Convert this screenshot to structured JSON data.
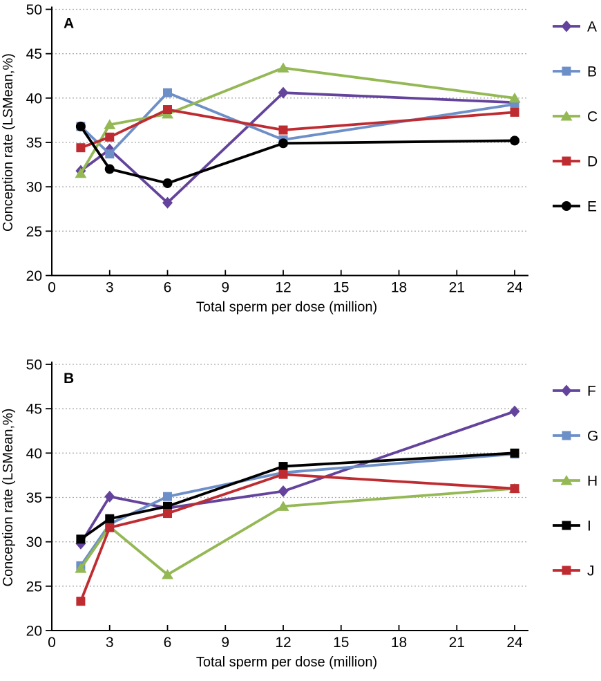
{
  "page": {
    "background": "#ffffff",
    "text_color": "#000000",
    "gridline_color": "#aaaaaa"
  },
  "chart_data": [
    {
      "type": "line",
      "panel_label": "A",
      "title": "",
      "xlabel": "Total sperm per dose (million)",
      "ylabel": "Conception rate (LSMean,%)",
      "x": [
        1.5,
        3,
        6,
        12,
        24
      ],
      "xticks": [
        0,
        3,
        6,
        9,
        12,
        15,
        18,
        21,
        24
      ],
      "yticks": [
        20,
        25,
        30,
        35,
        40,
        45,
        50
      ],
      "xlim": [
        0,
        24.7
      ],
      "ylim": [
        20,
        50
      ],
      "grid": "horizontal-dashed",
      "legend_position": "right-outside",
      "series": [
        {
          "name": "A",
          "marker": "diamond",
          "color": "#63439B",
          "values": [
            31.8,
            34.2,
            28.2,
            40.6,
            39.5
          ]
        },
        {
          "name": "B",
          "marker": "square",
          "color": "#6D8FC8",
          "values": [
            36.8,
            33.7,
            40.6,
            35.3,
            39.3
          ]
        },
        {
          "name": "C",
          "marker": "triangle",
          "color": "#94B854",
          "values": [
            31.5,
            37.0,
            38.2,
            43.4,
            40.0
          ]
        },
        {
          "name": "D",
          "marker": "square",
          "color": "#BE2C31",
          "values": [
            34.4,
            35.6,
            38.7,
            36.4,
            38.4
          ]
        },
        {
          "name": "E",
          "marker": "circle",
          "color": "#000000",
          "values": [
            36.8,
            32.0,
            30.4,
            34.9,
            35.2
          ]
        }
      ]
    },
    {
      "type": "line",
      "panel_label": "B",
      "title": "",
      "xlabel": "Total sperm per dose (million)",
      "ylabel": "Conception rate (LSMean,%)",
      "x": [
        1.5,
        3,
        6,
        12,
        24
      ],
      "xticks": [
        0,
        3,
        6,
        9,
        12,
        15,
        18,
        21,
        24
      ],
      "yticks": [
        20,
        25,
        30,
        35,
        40,
        45,
        50
      ],
      "xlim": [
        0,
        24.7
      ],
      "ylim": [
        20,
        50
      ],
      "grid": "horizontal-dashed",
      "legend_position": "right-outside",
      "series": [
        {
          "name": "F",
          "marker": "diamond",
          "color": "#63439B",
          "values": [
            29.8,
            35.1,
            33.8,
            35.7,
            44.7
          ]
        },
        {
          "name": "G",
          "marker": "square",
          "color": "#6D8FC8",
          "values": [
            27.3,
            32.0,
            35.1,
            37.8,
            39.9
          ]
        },
        {
          "name": "H",
          "marker": "triangle",
          "color": "#94B854",
          "values": [
            27.0,
            31.7,
            26.3,
            34.0,
            36.0
          ]
        },
        {
          "name": "I",
          "marker": "square",
          "color": "#000000",
          "values": [
            30.3,
            32.6,
            34.0,
            38.5,
            40.0
          ]
        },
        {
          "name": "J",
          "marker": "square",
          "color": "#BE2C31",
          "values": [
            23.3,
            31.6,
            33.2,
            37.6,
            36.0
          ]
        }
      ]
    }
  ]
}
